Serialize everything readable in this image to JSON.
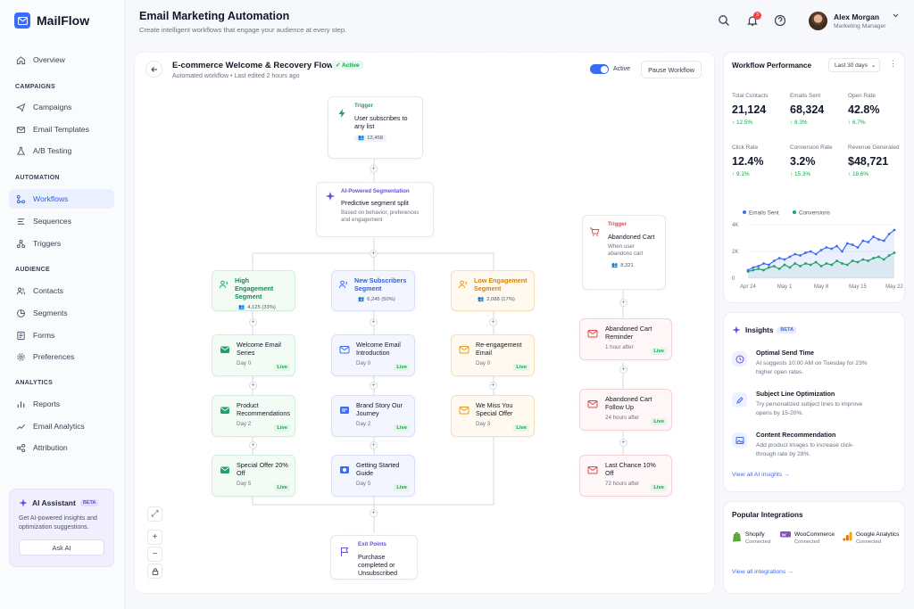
{
  "app": {
    "name": "MailFlow"
  },
  "header": {
    "title": "Email Marketing Automation",
    "subtitle": "Create intelligent workflows that engage your audience at every step.",
    "notif_count": "3",
    "user_name": "Alex Morgan",
    "user_role": "Marketing Manager"
  },
  "sidebar": {
    "overview": "Overview",
    "campaigns_label": "CAMPAIGNS",
    "campaigns": [
      "Campaigns",
      "Email Templates",
      "A/B Testing"
    ],
    "automation_label": "AUTOMATION",
    "automation": [
      "Workflows",
      "Sequences",
      "Triggers"
    ],
    "audience_label": "AUDIENCE",
    "audience": [
      "Contacts",
      "Segments",
      "Forms",
      "Preferences"
    ],
    "analytics_label": "ANALYTICS",
    "analytics": [
      "Reports",
      "Email Analytics",
      "Attribution"
    ],
    "ai": {
      "title": "AI Assistant",
      "badge": "BETA",
      "text": "Get AI-powered insights and optimization suggestions.",
      "button": "Ask AI"
    }
  },
  "workflow": {
    "name": "E-commerce Welcome & Recovery Flow",
    "status": "Active",
    "meta": "Automated workflow  •  Last edited 2 hours ago",
    "toggle_label": "Active",
    "pause_label": "Pause Workflow",
    "trigger": {
      "label": "Trigger",
      "title": "User subscribes to any list",
      "count": "12,458"
    },
    "ai_segment": {
      "label": "AI-Powered Segmentation",
      "title": "Predictive segment split",
      "desc": "Based on behavior, preferences and engagement"
    },
    "segments": [
      {
        "title": "High Engagement Segment",
        "count": "4,125 (33%)"
      },
      {
        "title": "New Subscribers Segment",
        "count": "6,245 (50%)"
      },
      {
        "title": "Low Engagement Segment",
        "count": "2,088 (17%)"
      }
    ],
    "col1": [
      {
        "title": "Welcome Email Series",
        "day": "Day 0",
        "status": "Live"
      },
      {
        "title": "Product Recommendations",
        "day": "Day 2",
        "status": "Live"
      },
      {
        "title": "Special Offer 20% Off",
        "day": "Day 5",
        "status": "Live"
      }
    ],
    "col2": [
      {
        "title": "Welcome Email Introduction",
        "day": "Day 0",
        "status": "Live"
      },
      {
        "title": "Brand Story Our Journey",
        "day": "Day 2",
        "status": "Live"
      },
      {
        "title": "Getting Started Guide",
        "day": "Day 5",
        "status": "Live"
      }
    ],
    "col3": [
      {
        "title": "Re-engagement Email",
        "day": "Day 0",
        "status": "Live"
      },
      {
        "title": "We Miss You Special Offer",
        "day": "Day 3",
        "status": "Live"
      }
    ],
    "cart_trigger": {
      "label": "Trigger",
      "title": "Abandoned Cart",
      "desc": "When user abandons cart",
      "count": "8,321"
    },
    "cart": [
      {
        "title": "Abandoned Cart Reminder",
        "day": "1 hour after",
        "status": "Live"
      },
      {
        "title": "Abandoned Cart Follow Up",
        "day": "24 hours after",
        "status": "Live"
      },
      {
        "title": "Last Chance 10% Off",
        "day": "72 hours after",
        "status": "Live"
      }
    ],
    "exit": {
      "label": "Exit Points",
      "title": "Purchase completed or Unsubscribed"
    }
  },
  "performance": {
    "title": "Workflow Performance",
    "range": "Last 30 days",
    "kpis": [
      {
        "label": "Total Contacts",
        "value": "21,124",
        "change": "12.5%"
      },
      {
        "label": "Emails Sent",
        "value": "68,324",
        "change": "8.3%"
      },
      {
        "label": "Open Rate",
        "value": "42.8%",
        "change": "6.7%"
      },
      {
        "label": "Click Rate",
        "value": "12.4%",
        "change": "9.1%"
      },
      {
        "label": "Conversion Rate",
        "value": "3.2%",
        "change": "15.3%"
      },
      {
        "label": "Revenue Generated",
        "value": "$48,721",
        "change": "18.6%"
      }
    ]
  },
  "chart_data": {
    "type": "line",
    "legend_position": "top-left",
    "ylim": [
      0,
      4000
    ],
    "yticks": [
      "4K",
      "2K",
      "0"
    ],
    "xticks": [
      "Apr 24",
      "May 1",
      "May 8",
      "May 15",
      "May 22"
    ],
    "x": [
      0,
      1,
      2,
      3,
      4,
      5,
      6,
      7,
      8,
      9,
      10,
      11,
      12,
      13,
      14,
      15,
      16,
      17,
      18,
      19,
      20,
      21,
      22,
      23,
      24,
      25,
      26,
      27,
      28
    ],
    "series": [
      {
        "name": "Emails Sent",
        "color": "#3b6cf6",
        "values": [
          600,
          800,
          900,
          1100,
          1000,
          1300,
          1500,
          1400,
          1600,
          1800,
          1700,
          1900,
          2000,
          1800,
          2100,
          2300,
          2200,
          2400,
          2000,
          2600,
          2500,
          2300,
          2800,
          2700,
          3100,
          2900,
          2800,
          3300,
          3600
        ]
      },
      {
        "name": "Conversions",
        "color": "#22a06b",
        "values": [
          500,
          600,
          700,
          600,
          800,
          900,
          700,
          1000,
          800,
          1100,
          900,
          1100,
          1000,
          1200,
          900,
          1100,
          1000,
          1300,
          1100,
          1000,
          1300,
          1200,
          1400,
          1300,
          1500,
          1600,
          1400,
          1700,
          1900
        ]
      }
    ]
  },
  "insights": {
    "title": "Insights",
    "badge": "BETA",
    "items": [
      {
        "title": "Optimal Send Time",
        "desc": "AI suggests 10:00 AM on Tuesday for 23% higher open rates."
      },
      {
        "title": "Subject Line Optimization",
        "desc": "Try personalized subject lines to improve opens by 15-20%."
      },
      {
        "title": "Content Recommendation",
        "desc": "Add product images to increase click-through rate by 28%."
      }
    ],
    "link": "View all AI insights →"
  },
  "integrations": {
    "title": "Popular Integrations",
    "items": [
      {
        "name": "Shopify",
        "status": "Connected"
      },
      {
        "name": "WooCommerce",
        "status": "Connected"
      },
      {
        "name": "Google Analytics",
        "status": "Connected"
      }
    ],
    "link": "View all integrations →"
  }
}
